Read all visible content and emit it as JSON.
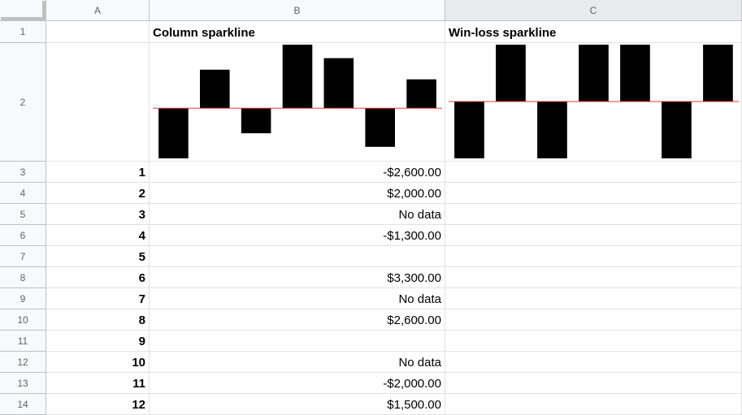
{
  "columns": [
    "A",
    "B",
    "C"
  ],
  "rows": [
    "1",
    "2",
    "3",
    "4",
    "5",
    "6",
    "7",
    "8",
    "9",
    "10",
    "11",
    "12",
    "13",
    "14"
  ],
  "headers": {
    "b1": "Column sparkline",
    "c1": "Win-loss sparkline"
  },
  "data_rows": [
    {
      "a": "1",
      "b": "-$2,600.00"
    },
    {
      "a": "2",
      "b": "$2,000.00"
    },
    {
      "a": "3",
      "b": "No data"
    },
    {
      "a": "4",
      "b": "-$1,300.00"
    },
    {
      "a": "5",
      "b": ""
    },
    {
      "a": "6",
      "b": "$3,300.00"
    },
    {
      "a": "7",
      "b": "No data"
    },
    {
      "a": "8",
      "b": "$2,600.00"
    },
    {
      "a": "9",
      "b": ""
    },
    {
      "a": "10",
      "b": "No data"
    },
    {
      "a": "11",
      "b": "-$2,000.00"
    },
    {
      "a": "12",
      "b": "$1,500.00"
    }
  ],
  "colors": {
    "bar": "#000000",
    "axis": "#e53935"
  },
  "chart_data": [
    {
      "type": "bar",
      "values": [
        -2600,
        2000,
        -1300,
        3300,
        2600,
        -2000,
        1500
      ],
      "ylim": [
        -2600,
        3300
      ]
    },
    {
      "type": "bar",
      "values": [
        -1,
        1,
        -1,
        1,
        1,
        -1,
        1
      ],
      "ylim": [
        -1,
        1
      ]
    }
  ]
}
